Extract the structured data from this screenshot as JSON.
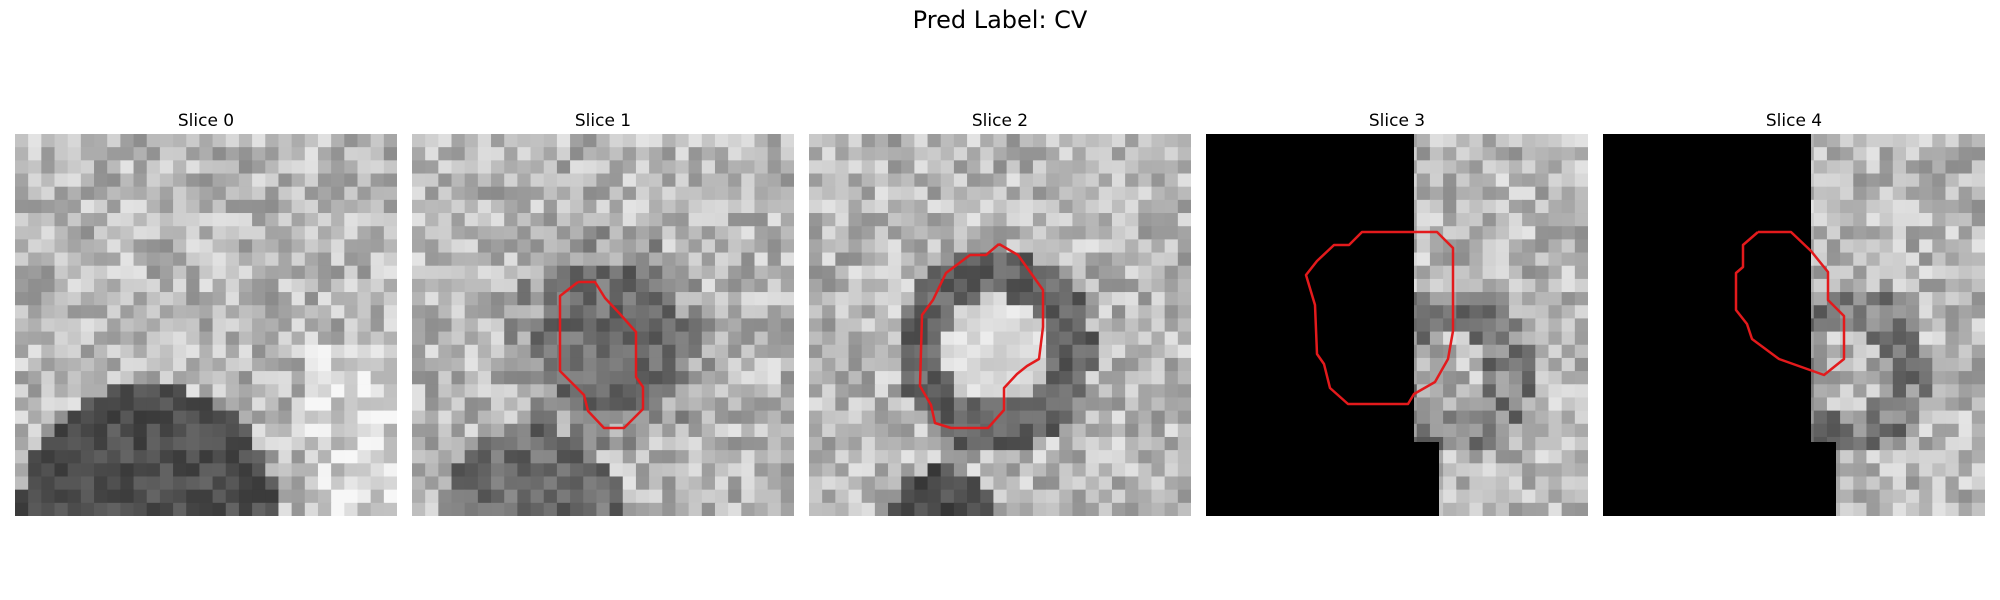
{
  "figure": {
    "title": "Pred Label: CV"
  },
  "panels": [
    {
      "title": "Slice 0",
      "mask": "none",
      "contour": "none",
      "blob": "bottom-left-dark"
    },
    {
      "title": "Slice 1",
      "mask": "none",
      "contour": "present",
      "blob": "center-dark"
    },
    {
      "title": "Slice 2",
      "mask": "none",
      "contour": "present",
      "blob": "ring"
    },
    {
      "title": "Slice 3",
      "mask": "left-black",
      "contour": "present",
      "blob": "faint-ring"
    },
    {
      "title": "Slice 4",
      "mask": "left-black",
      "contour": "present",
      "blob": "faint-ring"
    }
  ],
  "colors": {
    "contour": "#e31a1c",
    "mask": "#000000"
  }
}
